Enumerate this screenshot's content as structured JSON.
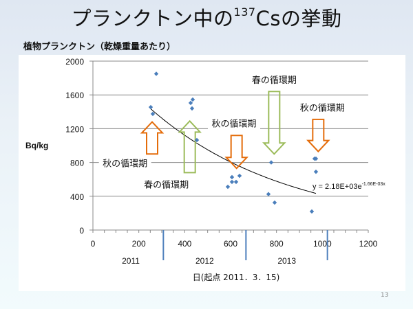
{
  "slide": {
    "title_prefix": "プランクトン中の",
    "title_sup": "137",
    "title_suffix": "Csの挙動",
    "subtitle": "植物プランクトン（乾燥重量あたり）",
    "page_number": "13"
  },
  "chart_data": {
    "type": "scatter",
    "title": "植物プランクトン（乾燥重量あたり）",
    "xlabel": "日(起点 2011．3．15)",
    "ylabel": "Bq/kg",
    "xlim": [
      0,
      1200
    ],
    "ylim": [
      0,
      2000
    ],
    "x_ticks": [
      "0",
      "200",
      "400",
      "600",
      "800",
      "1000",
      "1200"
    ],
    "y_ticks": [
      "0",
      "400",
      "800",
      "1200",
      "1600",
      "2000"
    ],
    "grid": "horizontal",
    "marker_color": "#4a7ebb",
    "series": [
      {
        "name": "植物プランクトン",
        "points": [
          [
            276,
            1850
          ],
          [
            252,
            1455
          ],
          [
            261,
            1375
          ],
          [
            426,
            1505
          ],
          [
            435,
            1545
          ],
          [
            432,
            1440
          ],
          [
            453,
            1065
          ],
          [
            588,
            512
          ],
          [
            606,
            626
          ],
          [
            639,
            642
          ],
          [
            606,
            570
          ],
          [
            624,
            570
          ],
          [
            777,
            800
          ],
          [
            765,
            425
          ],
          [
            792,
            325
          ],
          [
            966,
            845
          ],
          [
            972,
            845
          ],
          [
            972,
            690
          ],
          [
            954,
            220
          ]
        ]
      }
    ],
    "trendline": {
      "type": "exponential",
      "a": 2180,
      "b": -0.00166,
      "x_range": [
        252,
        972
      ],
      "equation_main": "y = 2.18E+03e",
      "equation_exp": "-1.66E-03x"
    },
    "year_dividers": [
      {
        "x": 307
      },
      {
        "x": 667
      },
      {
        "x": 1022
      }
    ],
    "year_labels": [
      {
        "label": "2011",
        "x": 165
      },
      {
        "label": "2012",
        "x": 487
      },
      {
        "label": "2013",
        "x": 845
      }
    ],
    "annotations": [
      {
        "text": "秋の循環期",
        "kind": "autumn",
        "arrow": "up",
        "arrow_x": 258,
        "arrow_top": 1280,
        "arrow_bottom": 900,
        "label_x": 140,
        "label_y": 760
      },
      {
        "text": "春の循環期",
        "kind": "spring",
        "arrow": "up",
        "arrow_x": 422,
        "arrow_top": 1290,
        "arrow_bottom": 680,
        "label_x": 320,
        "label_y": 510
      },
      {
        "text": "秋の循環期",
        "kind": "autumn",
        "arrow": "down",
        "arrow_x": 626,
        "arrow_top": 1120,
        "arrow_bottom": 730,
        "label_x": 615,
        "label_y": 1230
      },
      {
        "text": "春の循環期",
        "kind": "spring",
        "arrow": "down",
        "arrow_x": 790,
        "arrow_top": 1640,
        "arrow_bottom": 900,
        "label_x": 790,
        "label_y": 1750
      },
      {
        "text": "秋の循環期",
        "kind": "autumn",
        "arrow": "down",
        "arrow_x": 982,
        "arrow_top": 1310,
        "arrow_bottom": 930,
        "label_x": 1000,
        "label_y": 1420
      }
    ],
    "colors": {
      "autumn": "#e46c0a",
      "spring": "#9bbb59",
      "divider": "#4f81bd",
      "grid": "#888888",
      "trend": "#000000"
    }
  }
}
